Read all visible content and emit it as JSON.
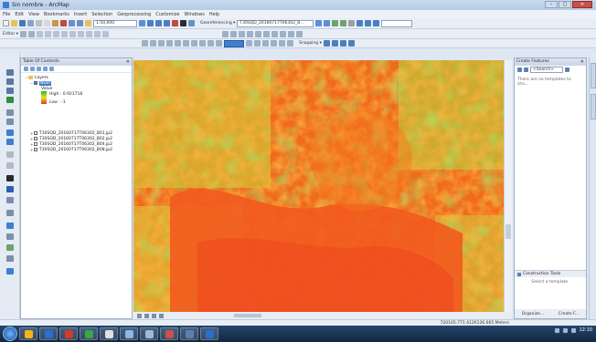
{
  "window": {
    "title": "Sin nombre - ArcMap",
    "buttons": [
      "–",
      "□",
      "✕"
    ]
  },
  "menu": [
    "File",
    "Edit",
    "View",
    "Bookmarks",
    "Insert",
    "Selection",
    "Geoprocessing",
    "Customize",
    "Windows",
    "Help"
  ],
  "toolbar": {
    "scale": "1:50,000",
    "georef_label": "Georeferencing ▾",
    "layer_select": "T30SQD_20160717T06302_B...",
    "editor_label": "Editor ▾",
    "snapping_label": "Snapping ▾"
  },
  "toc": {
    "title": "Table Of Contents",
    "root": "Layers",
    "selected_layer": "NDVI",
    "legend_title": "Value",
    "legend_high": "High : 0.921718",
    "legend_low": "Low : -1",
    "layers": [
      "T30SQD_20160717T06302_B01.jp2",
      "T30SQD_20160717T06302_B02.jp2",
      "T30SQD_20160717T06302_B04.jp2",
      "T30SQD_20160717T06302_B08.jp2"
    ]
  },
  "create_features": {
    "title": "Create Features",
    "search_placeholder": "<Search>",
    "message": "There are no templates to sho...",
    "construction_title": "Construction Tools",
    "construction_message": "Select a template.",
    "organize_label": "Organize...",
    "create_label": "Create F..."
  },
  "status": {
    "coords": "720105.771  4126126.665 Meters"
  },
  "taskbar": {
    "clock": "12:10"
  },
  "colors": {
    "ndvi_high": "#2fb52a",
    "ndvi_mid": "#e9e52c",
    "ndvi_low": "#e0381e"
  }
}
